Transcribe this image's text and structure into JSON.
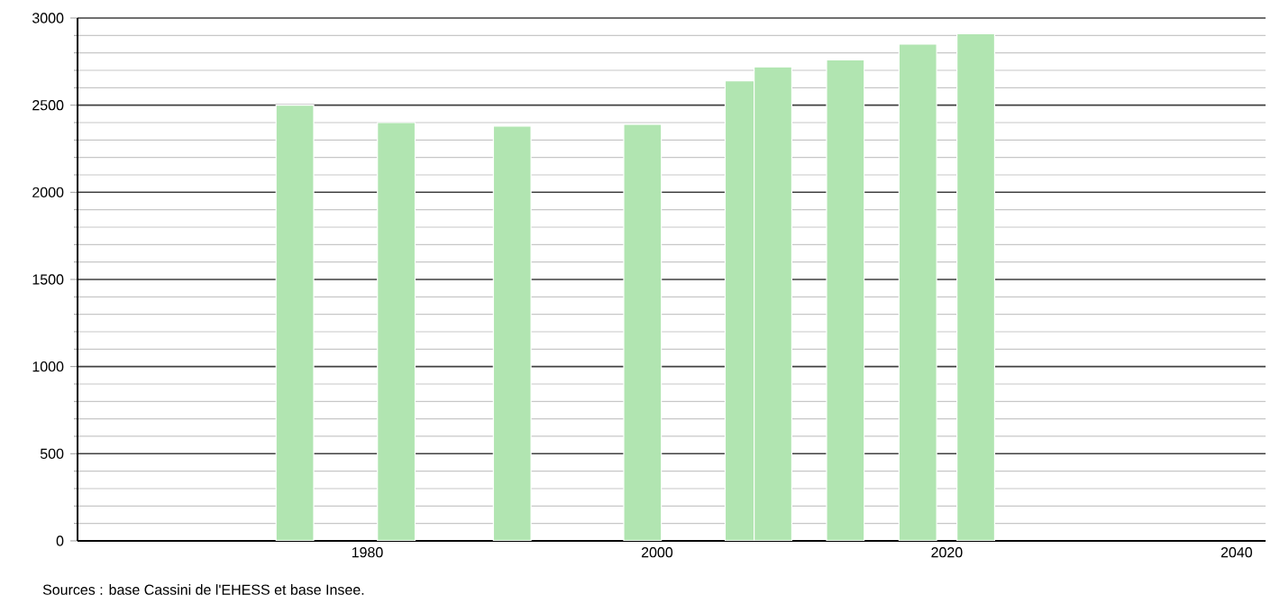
{
  "chart_data": {
    "type": "bar",
    "x": [
      1975,
      1982,
      1990,
      1999,
      2006,
      2008,
      2013,
      2018,
      2022
    ],
    "values": [
      2500,
      2400,
      2380,
      2390,
      2640,
      2720,
      2760,
      2850,
      2910
    ],
    "color": "#b1e5b1",
    "xlim": [
      1960,
      2042
    ],
    "xticks": [
      1980,
      2000,
      2020,
      2040
    ],
    "ylim": [
      0,
      3000
    ],
    "yticks": [
      0,
      500,
      1000,
      1500,
      2000,
      2500,
      3000
    ],
    "grid": "y",
    "annotations": [
      "Sources : base Cassini de l'EHESS et base Insee."
    ]
  }
}
